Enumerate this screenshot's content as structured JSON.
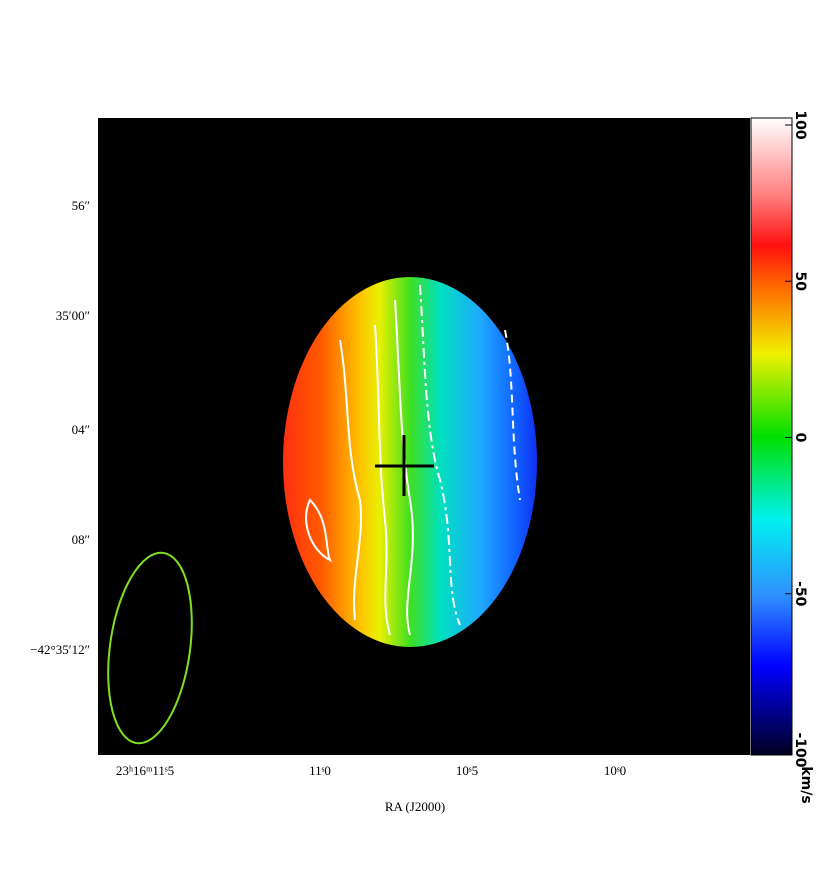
{
  "x_axis": {
    "label": "RA (J2000)",
    "ticks": [
      "23ʰ16ᵐ11ˢ5",
      "11ˢ0",
      "10ˢ5",
      "10ˢ0"
    ]
  },
  "y_axis": {
    "ticks": [
      "56″",
      "35′00″",
      "04″",
      "08″",
      "−42°35′12″"
    ]
  },
  "colorbar": {
    "label": "km/s",
    "lim": [
      -100,
      100
    ],
    "ticks": [
      100,
      50,
      0,
      -50,
      -100
    ]
  }
}
